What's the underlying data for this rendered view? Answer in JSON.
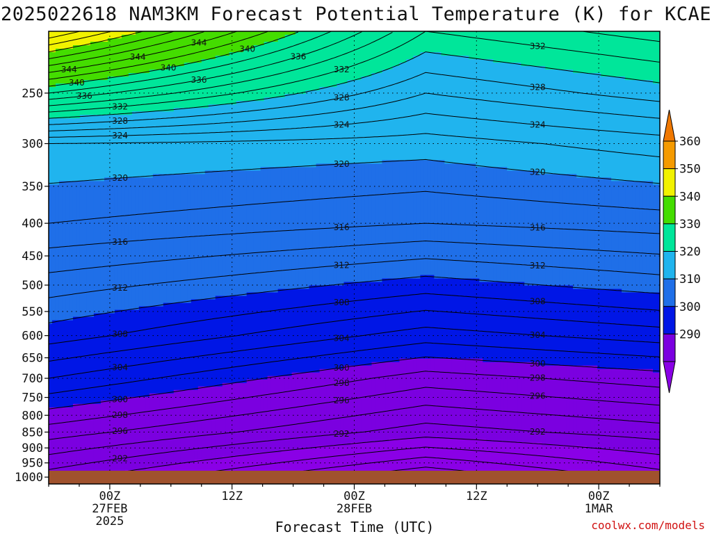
{
  "chart_data": {
    "type": "heatmap",
    "title": "2025022618 NAM3KM Forecast Potential Temperature (K) for KCAE",
    "xlabel": "Forecast Time (UTC)",
    "ylabel": "",
    "y_scale": "log-pressure (inverted)",
    "y_ticks": [
      250,
      300,
      350,
      400,
      450,
      500,
      550,
      600,
      650,
      700,
      750,
      800,
      850,
      900,
      950,
      1000
    ],
    "y_range_hpa": [
      200,
      1025
    ],
    "x_range_hours_from_init": [
      0,
      60
    ],
    "x_ticks": [
      {
        "hour": 6,
        "lines": [
          "00Z",
          "27FEB",
          "2025"
        ]
      },
      {
        "hour": 18,
        "lines": [
          "12Z"
        ]
      },
      {
        "hour": 30,
        "lines": [
          "00Z",
          "28FEB"
        ]
      },
      {
        "hour": 42,
        "lines": [
          "12Z"
        ]
      },
      {
        "hour": 54,
        "lines": [
          "00Z",
          "1MAR"
        ]
      }
    ],
    "grid": "dotted",
    "colorbar": {
      "bounds": [
        290,
        300,
        310,
        320,
        330,
        340,
        350,
        360
      ],
      "labels": [
        "360",
        "350",
        "340",
        "330",
        "320",
        "310",
        "300",
        "290"
      ],
      "colors": [
        "#7b00e0",
        "#0016e6",
        "#1f6fe8",
        "#20b4ee",
        "#00e69a",
        "#44dd00",
        "#f2f200",
        "#f59a00"
      ],
      "over_color": "#f07800",
      "under_color": "#8a00e6"
    },
    "ground_color": "#a0522d",
    "contour_interval_k": 2,
    "contour_levels_labeled": [
      292,
      296,
      298,
      300,
      304,
      308,
      312,
      316,
      320,
      324,
      328,
      332,
      336,
      340,
      344
    ],
    "isentrope_profile_start_hour_0": {
      "pressure_hpa": [
        1000,
        850,
        700,
        600,
        500,
        400,
        300,
        250,
        200
      ],
      "theta_k": [
        291,
        297,
        304,
        309,
        313,
        318,
        322,
        338,
        356
      ]
    },
    "isentrope_profile_hour_37": {
      "pressure_hpa": [
        1000,
        850,
        700,
        600,
        500,
        400,
        300,
        250,
        200
      ],
      "theta_k": [
        282,
        291,
        297,
        303,
        309,
        316,
        321,
        326,
        332
      ]
    },
    "isentrope_profile_end_hour_60": {
      "pressure_hpa": [
        1000,
        850,
        700,
        600,
        500,
        400,
        300,
        250,
        200
      ],
      "theta_k": [
        287,
        293,
        299,
        305,
        311,
        317,
        323,
        329,
        335
      ]
    }
  },
  "credit": "coolwx.com/models"
}
